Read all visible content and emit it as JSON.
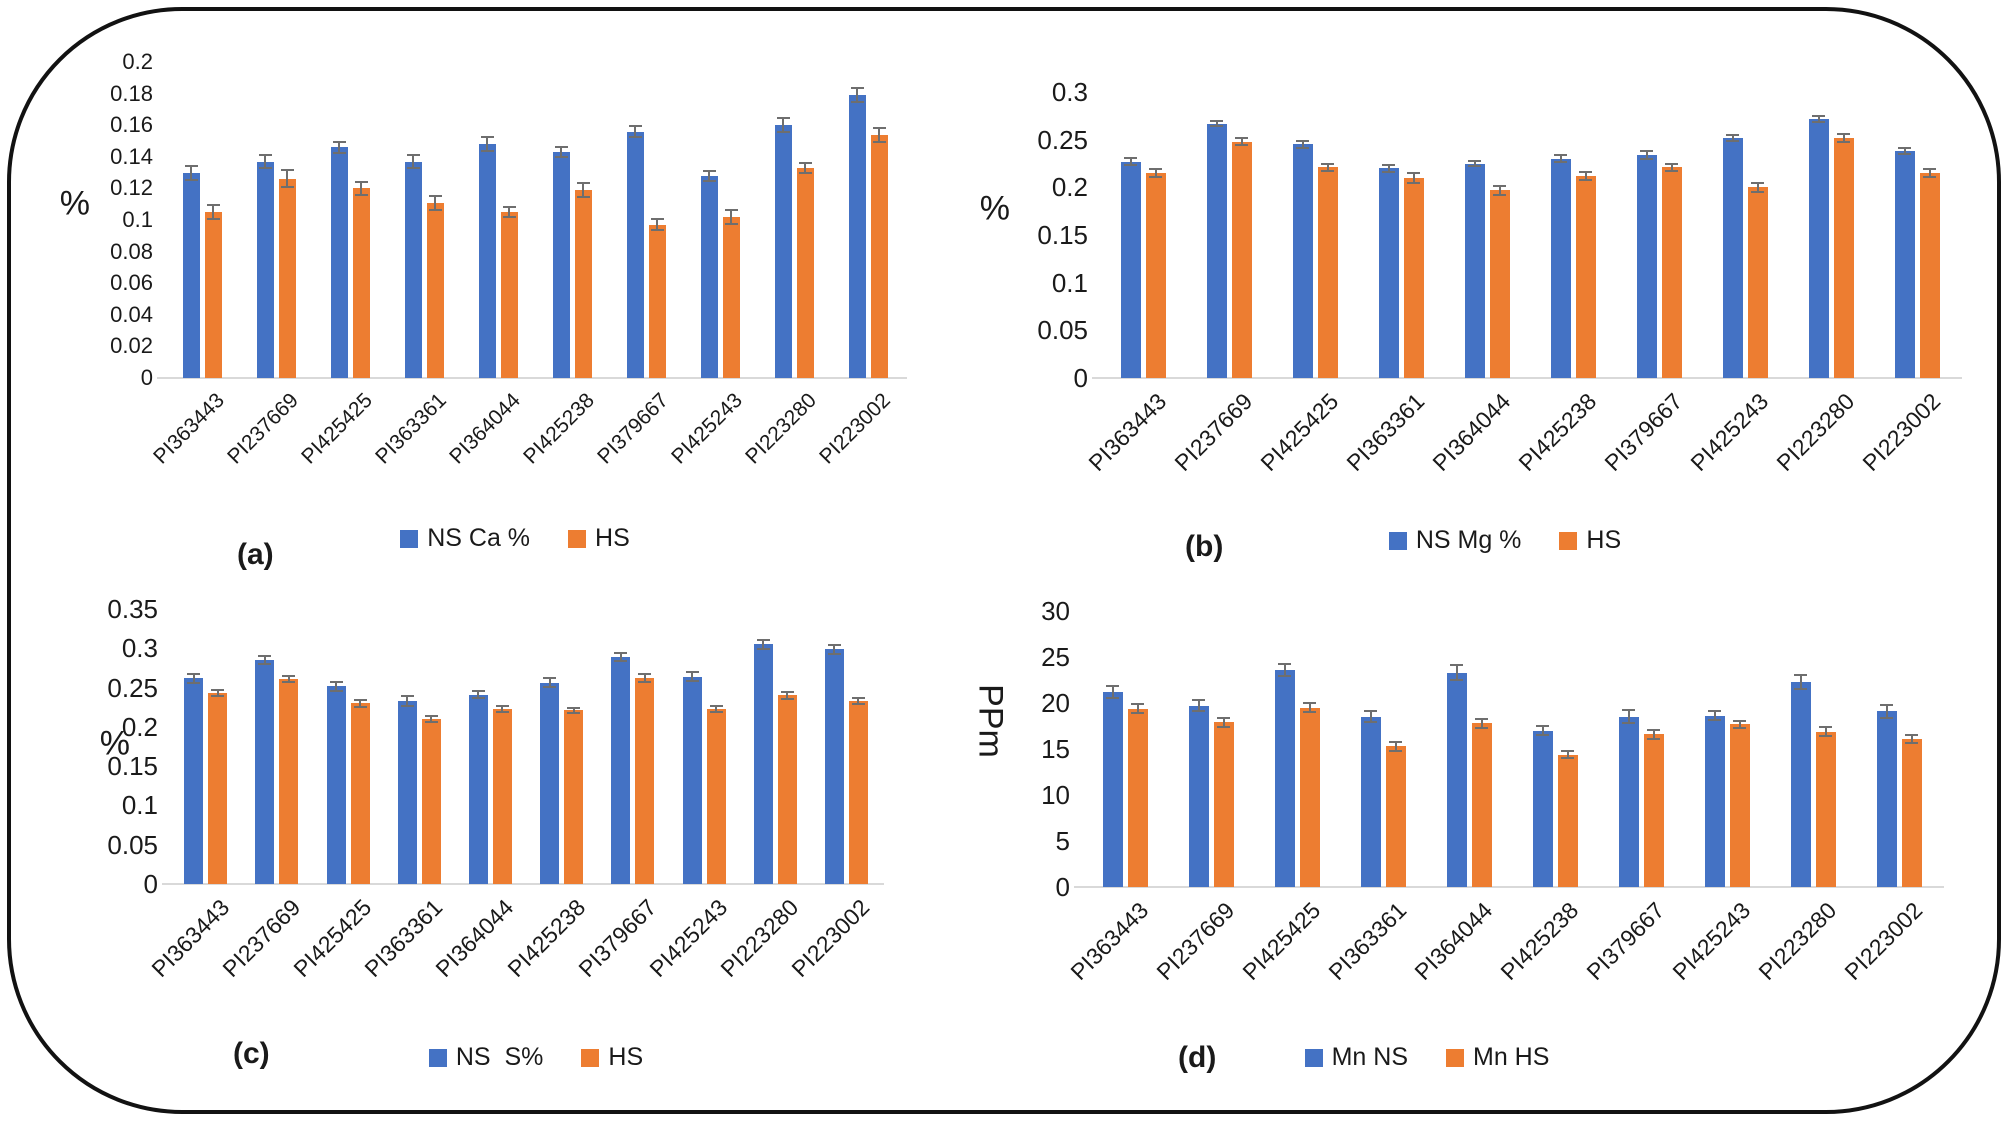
{
  "figure": {
    "background": "#ffffff",
    "border_color": "#121212",
    "bar_color_ns": "#4472C4",
    "bar_color_hs": "#ED7D31",
    "error_bar_color": "#6e6e6e",
    "axis_line_color": "#d9d9d9"
  },
  "chart_data": [
    {
      "type": "bar",
      "panel_label": "(a)",
      "ylabel": "%",
      "ylim": [
        0,
        0.2
      ],
      "grid": false,
      "legend_position": "bottom",
      "yticks": [
        "0",
        "0.02",
        "0.04",
        "0.06",
        "0.08",
        "0.1",
        "0.12",
        "0.14",
        "0.16",
        "0.18",
        "0.2"
      ],
      "categories": [
        "PI363443",
        "PI237669",
        "PI425425",
        "PI363361",
        "PI364044",
        "PI425238",
        "PI379667",
        "PI425243",
        "PI223280",
        "PI223002"
      ],
      "series": [
        {
          "name": "NS Ca %",
          "color": "#4472C4",
          "values": [
            0.13,
            0.137,
            0.146,
            0.137,
            0.148,
            0.143,
            0.156,
            0.128,
            0.16,
            0.179
          ],
          "errors": [
            0.005,
            0.005,
            0.004,
            0.005,
            0.005,
            0.004,
            0.004,
            0.004,
            0.005,
            0.005
          ]
        },
        {
          "name": "HS",
          "color": "#ED7D31",
          "values": [
            0.105,
            0.126,
            0.12,
            0.111,
            0.105,
            0.119,
            0.097,
            0.102,
            0.133,
            0.154
          ],
          "errors": [
            0.005,
            0.006,
            0.005,
            0.005,
            0.004,
            0.005,
            0.004,
            0.005,
            0.004,
            0.005
          ]
        }
      ]
    },
    {
      "type": "bar",
      "panel_label": "(b)",
      "ylabel": "%",
      "ylim": [
        0,
        0.3
      ],
      "grid": false,
      "legend_position": "bottom",
      "yticks": [
        "0",
        "0.05",
        "0.1",
        "0.15",
        "0.2",
        "0.25",
        "0.3"
      ],
      "categories": [
        "PI363443",
        "PI237669",
        "PI425425",
        "PI363361",
        "PI364044",
        "PI425238",
        "PI379667",
        "PI425243",
        "PI223280",
        "PI223002"
      ],
      "series": [
        {
          "name": "NS Mg %",
          "color": "#4472C4",
          "values": [
            0.227,
            0.267,
            0.245,
            0.22,
            0.225,
            0.23,
            0.234,
            0.252,
            0.272,
            0.238
          ],
          "errors": [
            0.005,
            0.004,
            0.005,
            0.005,
            0.004,
            0.005,
            0.005,
            0.004,
            0.004,
            0.004
          ]
        },
        {
          "name": "HS",
          "color": "#ED7D31",
          "values": [
            0.215,
            0.248,
            0.221,
            0.21,
            0.197,
            0.212,
            0.221,
            0.2,
            0.252,
            0.215
          ],
          "errors": [
            0.005,
            0.005,
            0.005,
            0.006,
            0.006,
            0.005,
            0.005,
            0.006,
            0.005,
            0.005
          ]
        }
      ]
    },
    {
      "type": "bar",
      "panel_label": "(c)",
      "ylabel": "%",
      "ylim": [
        0,
        0.35
      ],
      "grid": false,
      "legend_position": "bottom",
      "yticks": [
        "0",
        "0.05",
        "0.1",
        "0.15",
        "0.2",
        "0.25",
        "0.3",
        "0.35"
      ],
      "categories": [
        "PI363443",
        "PI237669",
        "PI425425",
        "PI363361",
        "PI364044",
        "PI425238",
        "PI379667",
        "PI425243",
        "PI223280",
        "PI223002"
      ],
      "series": [
        {
          "name": "NS  S%",
          "color": "#4472C4",
          "values": [
            0.262,
            0.285,
            0.252,
            0.233,
            0.241,
            0.256,
            0.289,
            0.264,
            0.305,
            0.299
          ],
          "errors": [
            0.007,
            0.006,
            0.007,
            0.008,
            0.006,
            0.007,
            0.006,
            0.007,
            0.007,
            0.007
          ]
        },
        {
          "name": "HS",
          "color": "#ED7D31",
          "values": [
            0.243,
            0.261,
            0.23,
            0.21,
            0.223,
            0.221,
            0.262,
            0.223,
            0.24,
            0.233
          ],
          "errors": [
            0.005,
            0.005,
            0.006,
            0.005,
            0.005,
            0.005,
            0.006,
            0.005,
            0.006,
            0.005
          ]
        }
      ]
    },
    {
      "type": "bar",
      "panel_label": "(d)",
      "ylabel": "PPm",
      "ylim": [
        0,
        30
      ],
      "grid": false,
      "legend_position": "bottom",
      "yticks": [
        "0",
        "5",
        "10",
        "15",
        "20",
        "25",
        "30"
      ],
      "categories": [
        "PI363443",
        "PI237669",
        "PI425425",
        "PI363361",
        "PI364044",
        "PI425238",
        "PI379667",
        "PI425243",
        "PI223280",
        "PI223002"
      ],
      "series": [
        {
          "name": "Mn NS",
          "color": "#4472C4",
          "values": [
            21.2,
            19.7,
            23.6,
            18.5,
            23.3,
            17.0,
            18.5,
            18.6,
            22.3,
            19.1
          ],
          "errors": [
            0.8,
            0.7,
            0.8,
            0.7,
            0.9,
            0.6,
            0.8,
            0.6,
            0.9,
            0.8
          ]
        },
        {
          "name": "Mn HS",
          "color": "#ED7D31",
          "values": [
            19.4,
            17.9,
            19.5,
            15.3,
            17.8,
            14.4,
            16.6,
            17.7,
            16.9,
            16.1
          ],
          "errors": [
            0.6,
            0.6,
            0.6,
            0.6,
            0.6,
            0.5,
            0.6,
            0.5,
            0.6,
            0.5
          ]
        }
      ]
    }
  ]
}
